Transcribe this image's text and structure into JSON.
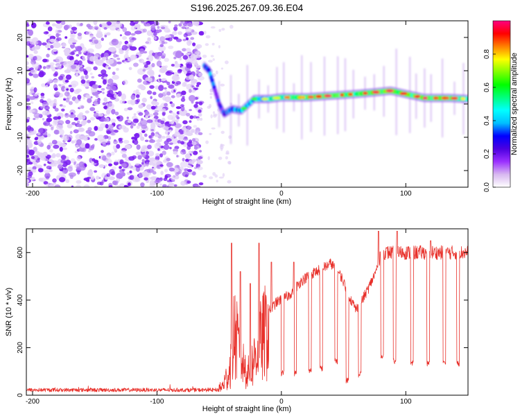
{
  "title": "S196.2025.267.09.36.E04",
  "chart_data": [
    {
      "type": "heatmap",
      "xlabel": "Height of straight line (km)",
      "ylabel": "Frequency (Hz)",
      "xlim": [
        -205,
        150
      ],
      "ylim": [
        -25,
        25
      ],
      "xticks": [
        -200,
        -100,
        0,
        100
      ],
      "xtick_labels": [
        "-200",
        "-100",
        "0",
        "100"
      ],
      "yticks": [
        -20,
        -10,
        0,
        10,
        20
      ],
      "ytick_labels": [
        "-20",
        "-10",
        "0",
        "10",
        "20"
      ],
      "noise_region": [
        -205,
        -62
      ],
      "ridge": [
        {
          "x": -62,
          "y": 11.5,
          "v": 0.45
        },
        {
          "x": -58,
          "y": 10.0,
          "v": 0.5
        },
        {
          "x": -50,
          "y": 0.0,
          "v": 0.3
        },
        {
          "x": -46,
          "y": -3.0,
          "v": 0.35
        },
        {
          "x": -40,
          "y": -1.5,
          "v": 0.45
        },
        {
          "x": -32,
          "y": -2.0,
          "v": 0.6
        },
        {
          "x": -22,
          "y": 1.5,
          "v": 0.5
        },
        {
          "x": -10,
          "y": 1.5,
          "v": 0.7
        },
        {
          "x": 0,
          "y": 2.0,
          "v": 0.75
        },
        {
          "x": 20,
          "y": 2.0,
          "v": 0.8
        },
        {
          "x": 40,
          "y": 2.5,
          "v": 0.85
        },
        {
          "x": 60,
          "y": 3.0,
          "v": 0.82
        },
        {
          "x": 75,
          "y": 3.5,
          "v": 0.9
        },
        {
          "x": 88,
          "y": 4.0,
          "v": 0.95
        },
        {
          "x": 100,
          "y": 3.0,
          "v": 0.85
        },
        {
          "x": 115,
          "y": 1.8,
          "v": 0.85
        },
        {
          "x": 135,
          "y": 1.8,
          "v": 0.8
        },
        {
          "x": 150,
          "y": 1.5,
          "v": 0.75
        }
      ],
      "colorbar": {
        "label": "Normalized spectral amplitude",
        "range": [
          0,
          1
        ],
        "ticks": [
          0.0,
          0.2,
          0.4,
          0.6,
          0.8
        ],
        "tick_labels": [
          "0.0",
          "0.2",
          "0.4",
          "0.6",
          "0.8"
        ],
        "colors": [
          "#ffffff",
          "#d8b8f0",
          "#9b30ff",
          "#4b00e0",
          "#0000ff",
          "#00bfff",
          "#00ffff",
          "#00ff80",
          "#00ff00",
          "#80ff00",
          "#ffff00",
          "#ff8000",
          "#ff0000",
          "#ff0080"
        ]
      }
    },
    {
      "type": "line",
      "xlabel": "Height of straight line (km)",
      "ylabel": "SNR (10 * v/v)",
      "xlim": [
        -205,
        150
      ],
      "ylim": [
        0,
        700
      ],
      "xticks": [
        -200,
        -100,
        0,
        100
      ],
      "xtick_labels": [
        "-200",
        "-100",
        "0",
        "100"
      ],
      "yticks": [
        0,
        200,
        400,
        600
      ],
      "ytick_labels": [
        "0",
        "200",
        "400",
        "600"
      ],
      "color": "#e8302a",
      "envelope": [
        {
          "x": -205,
          "y": 20
        },
        {
          "x": -60,
          "y": 20
        },
        {
          "x": -48,
          "y": 40
        },
        {
          "x": -42,
          "y": 120
        },
        {
          "x": -38,
          "y": 330
        },
        {
          "x": -32,
          "y": 180
        },
        {
          "x": -26,
          "y": 110
        },
        {
          "x": -20,
          "y": 230
        },
        {
          "x": -12,
          "y": 340
        },
        {
          "x": -4,
          "y": 390
        },
        {
          "x": 6,
          "y": 420
        },
        {
          "x": 16,
          "y": 480
        },
        {
          "x": 24,
          "y": 510
        },
        {
          "x": 32,
          "y": 530
        },
        {
          "x": 40,
          "y": 555
        },
        {
          "x": 48,
          "y": 500
        },
        {
          "x": 56,
          "y": 400
        },
        {
          "x": 60,
          "y": 360
        },
        {
          "x": 65,
          "y": 400
        },
        {
          "x": 70,
          "y": 450
        },
        {
          "x": 76,
          "y": 520
        },
        {
          "x": 80,
          "y": 600
        },
        {
          "x": 150,
          "y": 600
        }
      ],
      "dips": [
        {
          "x": 1,
          "y": 80
        },
        {
          "x": 11,
          "y": 80
        },
        {
          "x": 23,
          "y": 90
        },
        {
          "x": 32,
          "y": 100
        },
        {
          "x": 44,
          "y": 130
        },
        {
          "x": 53,
          "y": 50
        },
        {
          "x": 63,
          "y": 75
        },
        {
          "x": 81,
          "y": 150
        },
        {
          "x": 91,
          "y": 130
        },
        {
          "x": 105,
          "y": 120
        },
        {
          "x": 118,
          "y": 120
        },
        {
          "x": 131,
          "y": 130
        },
        {
          "x": 142,
          "y": 120
        }
      ],
      "spikes": [
        {
          "x": -40,
          "y": 640
        },
        {
          "x": -33,
          "y": 520
        },
        {
          "x": -25,
          "y": 470
        },
        {
          "x": -18,
          "y": 640
        },
        {
          "x": -8,
          "y": 560
        },
        {
          "x": 10,
          "y": 560
        },
        {
          "x": 78,
          "y": 690
        },
        {
          "x": 93,
          "y": 690
        },
        {
          "x": 120,
          "y": 650
        }
      ]
    }
  ]
}
